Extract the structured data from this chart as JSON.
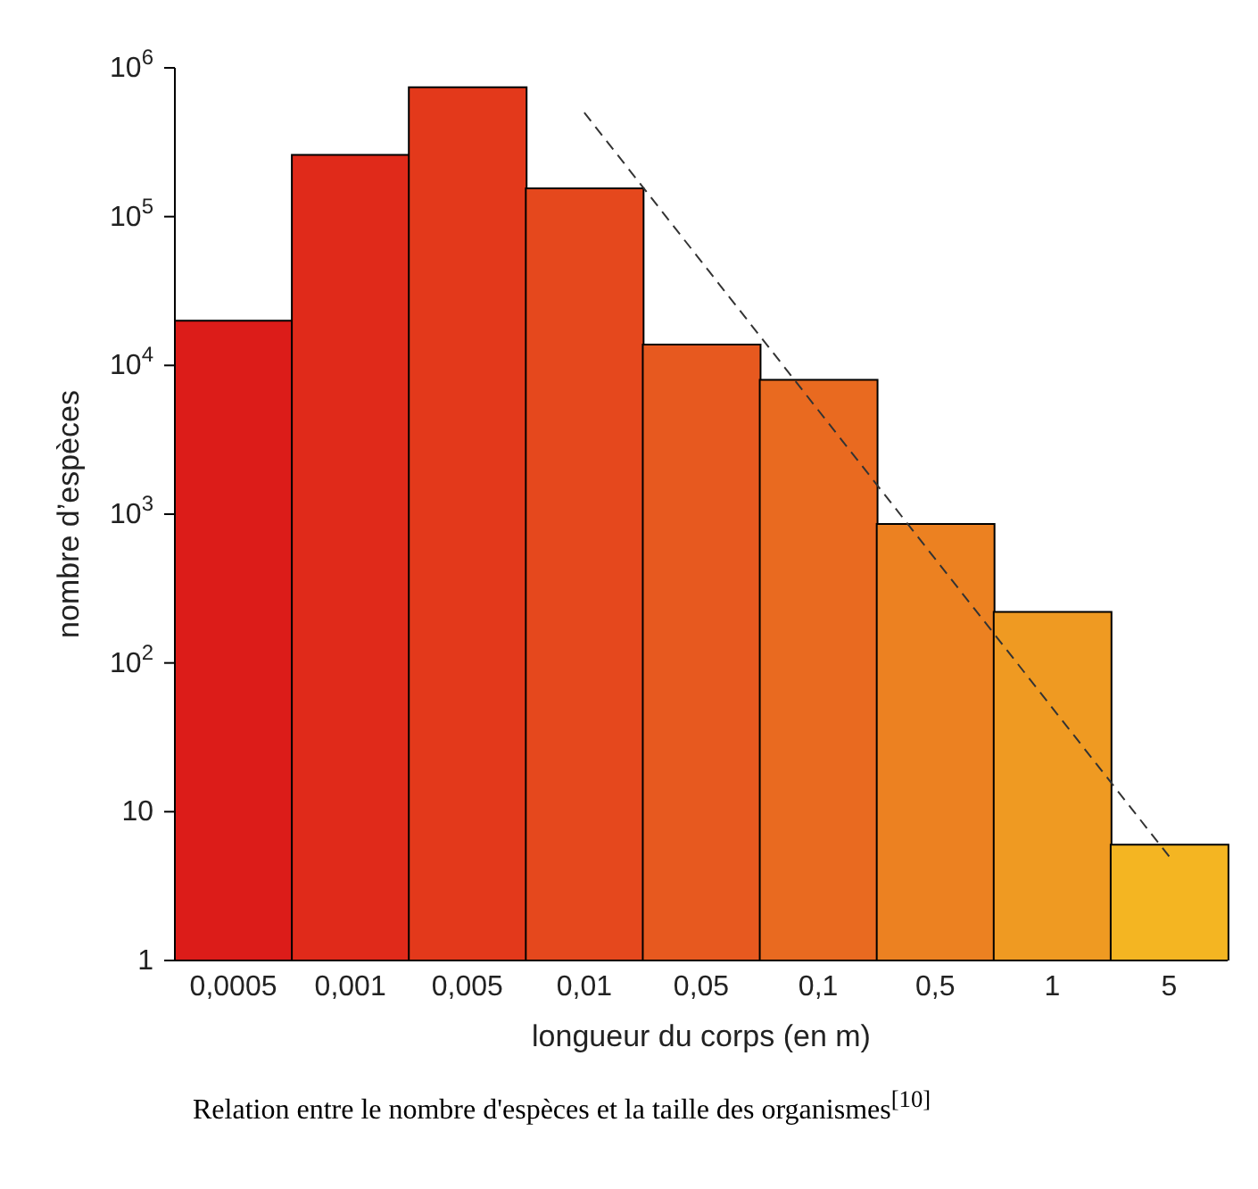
{
  "chart_data": {
    "type": "bar",
    "xlabel": "longueur du corps (en m)",
    "ylabel": "nombre d’espèces",
    "categories": [
      "0,0005",
      "0,001",
      "0,005",
      "0,01",
      "0,05",
      "0,1",
      "0,5",
      "1",
      "5"
    ],
    "series": [
      {
        "values": [
          20000,
          260000,
          740000,
          155000,
          13800,
          8000,
          860,
          220,
          6
        ],
        "colors": [
          "#dc1c19",
          "#e02a1a",
          "#e3391b",
          "#e5481d",
          "#e7591f",
          "#e96a20",
          "#ec8121",
          "#ef9a22",
          "#f4b522"
        ]
      },
      {
        "type": "line",
        "values": [
          null,
          null,
          null,
          500000,
          50000,
          5000,
          500,
          50,
          5
        ],
        "color": "#333333",
        "line_style": "dashed"
      }
    ],
    "log": "y",
    "ylim": [
      1,
      1000000
    ],
    "yticks": [
      1,
      10,
      {
        "value": 100,
        "label": "10$^{2}$"
      },
      {
        "value": 1000,
        "label": "10$^{3}$"
      },
      {
        "value": 10000,
        "label": "10$^{4}$"
      },
      {
        "value": 100000,
        "label": "10$^{5}$"
      },
      {
        "value": 1000000,
        "label": "10$^{6}$"
      }
    ],
    "grid": false,
    "legend": false,
    "annotations": [
      "Relation entre le nombre d'espèces et la taille des organismes$^{[10]}$"
    ]
  }
}
